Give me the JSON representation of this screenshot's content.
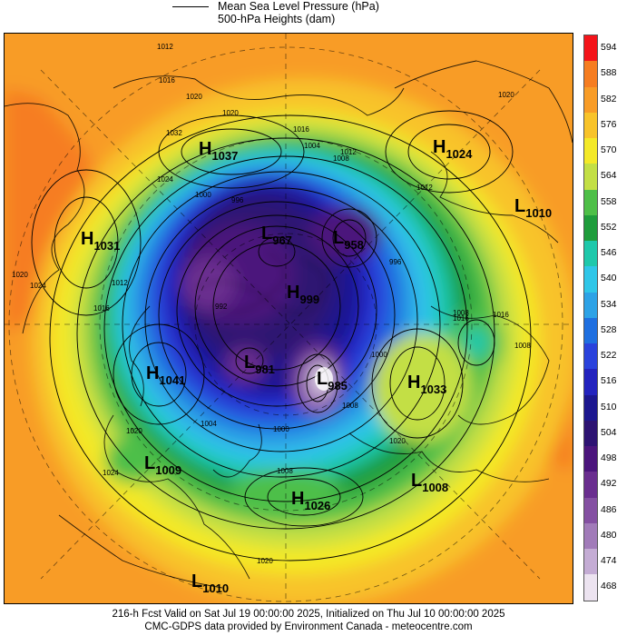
{
  "header": {
    "line1": "Mean Sea Level Pressure (hPa)",
    "line2": "500-hPa Heights (dam)"
  },
  "footer": {
    "line1": "216-h Fcst Valid on Sat Jul 19 00:00:00 2025, Initialized on Thu Jul 10 00:00:00 2025",
    "line2": "CMC-GDPS data provided by Environment Canada - meteocentre.com"
  },
  "colorbar": [
    {
      "label": "594",
      "color": "#f4141a"
    },
    {
      "label": "588",
      "color": "#f67d21"
    },
    {
      "label": "582",
      "color": "#f89c27"
    },
    {
      "label": "576",
      "color": "#f8c32a"
    },
    {
      "label": "570",
      "color": "#f4e928"
    },
    {
      "label": "564",
      "color": "#c3df45"
    },
    {
      "label": "558",
      "color": "#4ebf48"
    },
    {
      "label": "552",
      "color": "#1f9c3c"
    },
    {
      "label": "546",
      "color": "#1ec8ab"
    },
    {
      "label": "540",
      "color": "#2fc6e8"
    },
    {
      "label": "534",
      "color": "#2da2e6"
    },
    {
      "label": "528",
      "color": "#1f6fe0"
    },
    {
      "label": "522",
      "color": "#2a42dc"
    },
    {
      "label": "516",
      "color": "#2323be"
    },
    {
      "label": "510",
      "color": "#1c178f"
    },
    {
      "label": "504",
      "color": "#2d1372"
    },
    {
      "label": "498",
      "color": "#4b157c"
    },
    {
      "label": "492",
      "color": "#6a2e8f"
    },
    {
      "label": "486",
      "color": "#8450a2"
    },
    {
      "label": "480",
      "color": "#a17bb9"
    },
    {
      "label": "474",
      "color": "#c4acd4"
    },
    {
      "label": "468",
      "color": "#ece3f0"
    }
  ],
  "pressure_centers": [
    {
      "type": "H",
      "value": "1037"
    },
    {
      "type": "H",
      "value": "1024"
    },
    {
      "type": "L",
      "value": "1010"
    },
    {
      "type": "H",
      "value": "1031"
    },
    {
      "type": "L",
      "value": "967"
    },
    {
      "type": "L",
      "value": "958"
    },
    {
      "type": "H",
      "value": "999"
    },
    {
      "type": "H",
      "value": "1041"
    },
    {
      "type": "L",
      "value": "981"
    },
    {
      "type": "L",
      "value": "985"
    },
    {
      "type": "H",
      "value": "1033"
    },
    {
      "type": "L",
      "value": "1009"
    },
    {
      "type": "L",
      "value": "1008"
    },
    {
      "type": "H",
      "value": "1026"
    },
    {
      "type": "L",
      "value": "1010"
    }
  ],
  "isobar_labels": [
    "1012",
    "1016",
    "1020",
    "1020",
    "1032",
    "1024",
    "1000",
    "996",
    "992",
    "1012",
    "1016",
    "1024",
    "1020",
    "1016",
    "1004",
    "1008",
    "1012",
    "996",
    "1008",
    "1016",
    "1008",
    "1012",
    "1016",
    "1000",
    "1008",
    "1020",
    "1004",
    "1000",
    "1008",
    "1020",
    "1024",
    "1020",
    "1020"
  ]
}
